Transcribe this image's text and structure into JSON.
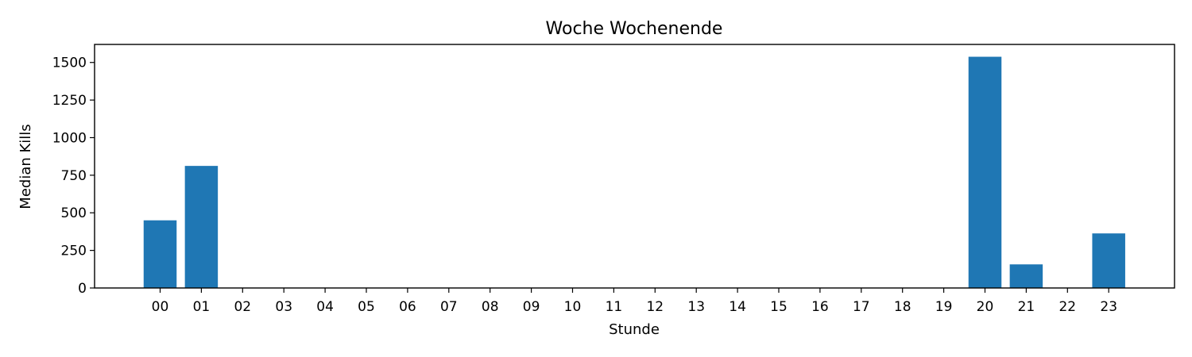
{
  "chart_data": {
    "type": "bar",
    "title": "Woche Wochenende",
    "xlabel": "Stunde",
    "ylabel": "Median Kills",
    "categories": [
      "00",
      "01",
      "02",
      "03",
      "04",
      "05",
      "06",
      "07",
      "08",
      "09",
      "10",
      "11",
      "12",
      "13",
      "14",
      "15",
      "16",
      "17",
      "18",
      "19",
      "20",
      "21",
      "22",
      "23"
    ],
    "values": [
      450,
      812,
      0,
      0,
      0,
      0,
      0,
      0,
      0,
      0,
      0,
      0,
      0,
      0,
      0,
      0,
      0,
      0,
      0,
      0,
      1538,
      157,
      0,
      363
    ],
    "ylim": [
      0,
      1620
    ],
    "yticks": [
      0,
      250,
      500,
      750,
      1000,
      1250,
      1500
    ],
    "bar_color": "#1f77b4",
    "grid": false,
    "legend": "none"
  }
}
